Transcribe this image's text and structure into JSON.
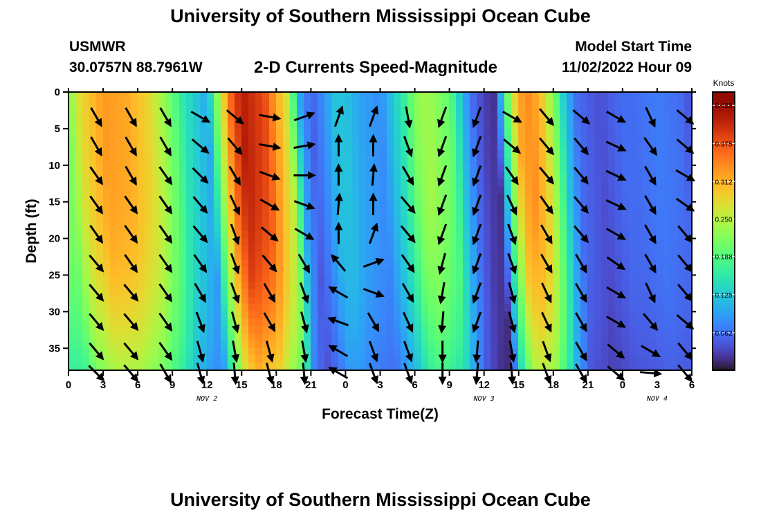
{
  "header": {
    "title": "University of Southern Mississippi Ocean Cube",
    "station": "USMWR",
    "location": "30.0757N  88.7961W",
    "subtitle": "2-D Currents Speed-Magnitude",
    "model_start_label": "Model Start Time",
    "model_start_value": "11/02/2022 Hour 09",
    "footer_title": "University of Southern Mississippi Ocean Cube"
  },
  "chart_data": {
    "type": "heatmap",
    "title": "2-D Currents Speed-Magnitude",
    "xlabel": "Forecast Time(Z)",
    "ylabel": "Depth (ft)",
    "x_unit": "hours from 11/02 00Z",
    "xlim": [
      0,
      54
    ],
    "ylim": [
      0,
      38
    ],
    "y_inverted": true,
    "x_ticks": [
      0,
      3,
      6,
      9,
      12,
      15,
      18,
      21,
      24,
      27,
      30,
      33,
      36,
      39,
      42,
      45,
      48,
      51,
      54
    ],
    "x_tick_labels": [
      "0",
      "3",
      "6",
      "9",
      "12",
      "15",
      "18",
      "21",
      "0",
      "3",
      "6",
      "9",
      "12",
      "15",
      "18",
      "21",
      "0",
      "3",
      "6"
    ],
    "y_ticks": [
      0,
      5,
      10,
      15,
      20,
      25,
      30,
      35
    ],
    "y_tick_labels": [
      "0",
      "5",
      "10",
      "15",
      "20",
      "25",
      "30",
      "35"
    ],
    "date_labels": [
      {
        "x": 12,
        "label": "NOV 2"
      },
      {
        "x": 36,
        "label": "NOV 3"
      },
      {
        "x": 51,
        "label": "NOV 4"
      }
    ],
    "colorbar": {
      "title": "Knots",
      "min": 0,
      "max": 0.46,
      "ticks": [
        0.062,
        0.125,
        0.188,
        0.25,
        0.312,
        0.375,
        0.438
      ],
      "tick_labels": [
        "0.062",
        "0.125",
        "0.188",
        "0.250",
        "0.312",
        "0.375",
        "0.438"
      ],
      "colormap": "turbo"
    },
    "speed_profile": {
      "times": [
        0,
        1,
        3,
        5,
        7,
        9,
        10,
        12,
        13,
        14,
        15,
        17,
        19,
        20,
        21,
        22,
        23,
        24,
        25,
        27,
        29,
        30,
        31,
        33,
        34,
        35,
        36,
        37,
        38,
        39,
        40,
        41,
        42,
        43,
        44,
        46,
        48,
        49,
        51,
        53,
        54
      ],
      "speeds": [
        0.22,
        0.28,
        0.33,
        0.32,
        0.28,
        0.2,
        0.15,
        0.1,
        0.24,
        0.36,
        0.42,
        0.38,
        0.26,
        0.1,
        0.05,
        0.08,
        0.12,
        0.12,
        0.1,
        0.08,
        0.16,
        0.22,
        0.24,
        0.2,
        0.12,
        0.06,
        0.03,
        0.02,
        0.2,
        0.32,
        0.34,
        0.3,
        0.22,
        0.12,
        0.06,
        0.04,
        0.06,
        0.06,
        0.07,
        0.06,
        0.04
      ]
    },
    "vector_times": [
      3,
      6,
      9,
      12,
      15,
      18,
      21,
      24,
      27,
      30,
      33,
      36,
      39,
      42,
      45,
      48,
      51,
      54
    ],
    "vector_depths": [
      3,
      7,
      11,
      15,
      19,
      23,
      27,
      31,
      35,
      38
    ],
    "vector_directions_deg": [
      [
        150,
        150,
        150,
        120,
        130,
        100,
        70,
        20,
        20,
        170,
        200,
        200,
        120,
        140,
        130,
        120,
        155,
        130
      ],
      [
        150,
        150,
        150,
        130,
        140,
        100,
        80,
        0,
        0,
        160,
        200,
        200,
        130,
        140,
        140,
        115,
        145,
        130
      ],
      [
        145,
        150,
        145,
        135,
        150,
        110,
        90,
        0,
        5,
        150,
        200,
        200,
        145,
        140,
        140,
        115,
        150,
        120
      ],
      [
        145,
        145,
        145,
        140,
        155,
        120,
        110,
        5,
        0,
        140,
        200,
        200,
        155,
        145,
        140,
        115,
        150,
        125
      ],
      [
        145,
        145,
        145,
        140,
        160,
        130,
        120,
        0,
        20,
        140,
        200,
        200,
        160,
        150,
        140,
        120,
        150,
        140
      ],
      [
        140,
        145,
        145,
        145,
        160,
        140,
        150,
        320,
        70,
        145,
        195,
        200,
        160,
        150,
        150,
        125,
        150,
        140
      ],
      [
        140,
        140,
        145,
        150,
        160,
        150,
        160,
        300,
        110,
        150,
        190,
        200,
        165,
        155,
        150,
        120,
        155,
        140
      ],
      [
        140,
        140,
        145,
        160,
        165,
        150,
        165,
        290,
        150,
        155,
        185,
        200,
        165,
        155,
        150,
        120,
        140,
        130
      ],
      [
        140,
        140,
        145,
        165,
        170,
        165,
        170,
        300,
        160,
        160,
        180,
        185,
        170,
        160,
        150,
        130,
        120,
        140
      ],
      [
        135,
        140,
        150,
        165,
        175,
        165,
        175,
        300,
        160,
        160,
        180,
        185,
        175,
        160,
        150,
        130,
        95,
        140
      ]
    ]
  }
}
